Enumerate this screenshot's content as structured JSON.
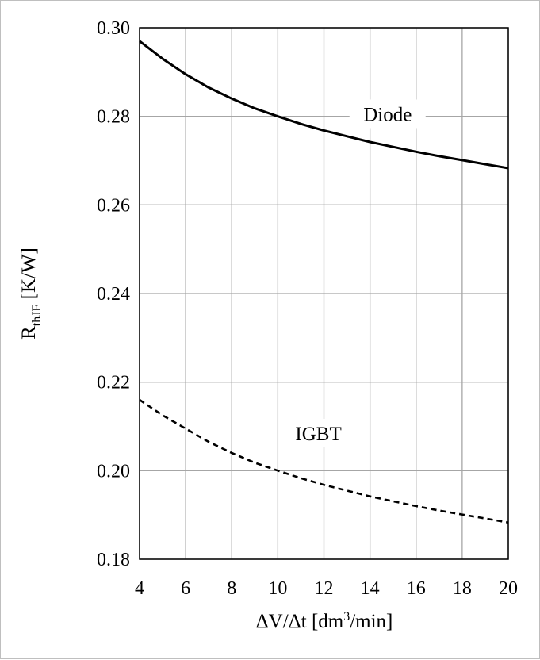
{
  "chart_data": {
    "type": "line",
    "title": "",
    "xlabel": {
      "pre": "ΔV/Δt [dm",
      "sup": "3",
      "post": "/min]"
    },
    "ylabel": {
      "main": "R",
      "sub": "thJF",
      "post": " [K/W]"
    },
    "xlim": [
      4,
      20
    ],
    "ylim": [
      0.18,
      0.3
    ],
    "x_ticks": [
      "4",
      "6",
      "8",
      "10",
      "12",
      "14",
      "16",
      "18",
      "20"
    ],
    "y_ticks": [
      "0.18",
      "0.20",
      "0.22",
      "0.24",
      "0.26",
      "0.28",
      "0.30"
    ],
    "grid": true,
    "series": [
      {
        "name": "Diode",
        "style": "solid",
        "color": "#000000",
        "x": [
          4,
          5,
          6,
          7,
          8,
          9,
          10,
          11,
          12,
          13,
          14,
          15,
          16,
          17,
          18,
          19,
          20
        ],
        "y": [
          0.297,
          0.293,
          0.2895,
          0.2865,
          0.284,
          0.2818,
          0.28,
          0.2783,
          0.2768,
          0.2755,
          0.2742,
          0.2731,
          0.272,
          0.271,
          0.2701,
          0.2692,
          0.2683
        ]
      },
      {
        "name": "IGBT",
        "style": "dashed",
        "color": "#000000",
        "x": [
          4,
          5,
          6,
          7,
          8,
          9,
          10,
          11,
          12,
          13,
          14,
          15,
          16,
          17,
          18,
          19,
          20
        ],
        "y": [
          0.216,
          0.2125,
          0.2095,
          0.2065,
          0.204,
          0.2018,
          0.2,
          0.1983,
          0.1968,
          0.1955,
          0.1942,
          0.1931,
          0.192,
          0.191,
          0.1901,
          0.1892,
          0.1883
        ]
      }
    ]
  }
}
